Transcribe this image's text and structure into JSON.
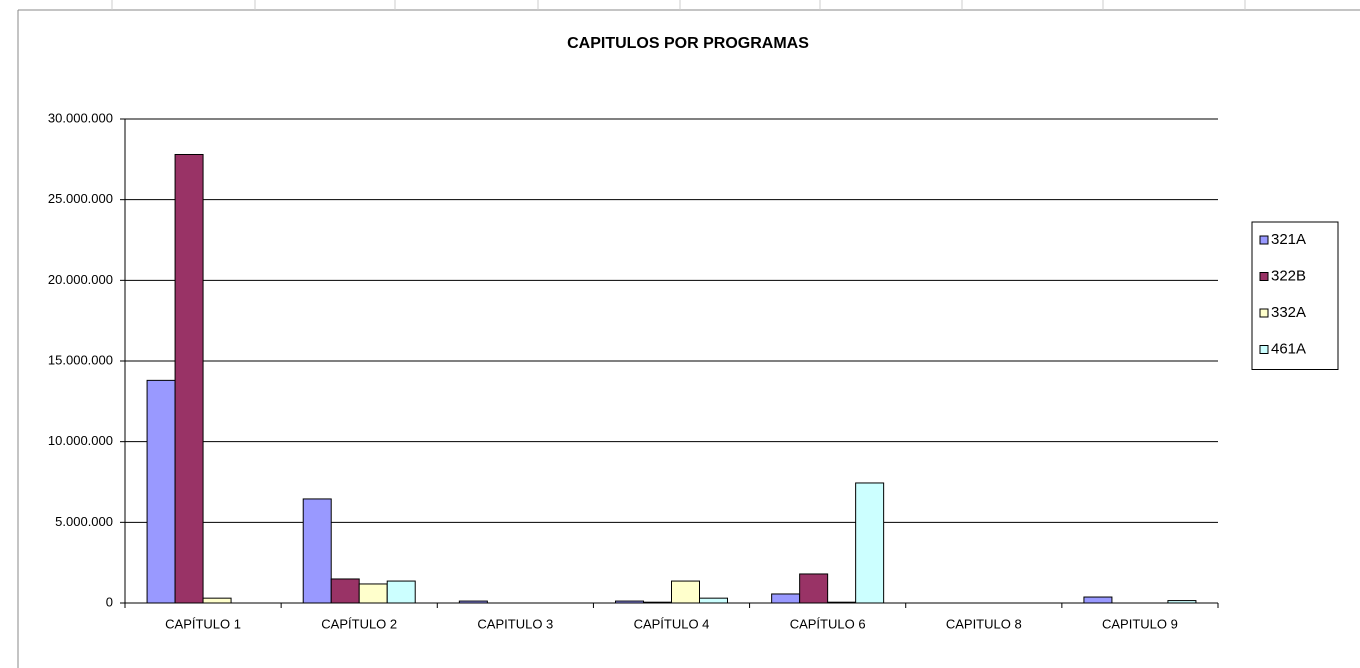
{
  "chart_data": {
    "type": "bar",
    "title": "CAPITULOS POR PROGRAMAS",
    "categories": [
      "CAPÍTULO 1",
      "CAPÍTULO 2",
      "CAPITULO 3",
      "CAPÍTULO 4",
      "CAPÍTULO 6",
      "CAPITULO 8",
      "CAPITULO 9"
    ],
    "series": [
      {
        "name": "321A",
        "color": "#9999ff",
        "values": [
          13800000,
          6450000,
          120000,
          120000,
          560000,
          0,
          370000
        ]
      },
      {
        "name": "322B",
        "color": "#993366",
        "values": [
          27800000,
          1490000,
          0,
          50000,
          1800000,
          0,
          0
        ]
      },
      {
        "name": "332A",
        "color": "#ffffcc",
        "values": [
          300000,
          1180000,
          0,
          1360000,
          50000,
          0,
          0
        ]
      },
      {
        "name": "461A",
        "color": "#ccffff",
        "values": [
          0,
          1360000,
          0,
          300000,
          7440000,
          0,
          150000
        ]
      }
    ],
    "ylim": [
      0,
      30000000
    ],
    "yticks": [
      0,
      {
        "value": 5000000,
        "label": "5.000.000"
      },
      {
        "value": 10000000,
        "label": "10.000.000"
      },
      {
        "value": 15000000,
        "label": "15.000.000"
      },
      {
        "value": 20000000,
        "label": "20.000.000"
      },
      {
        "value": 25000000,
        "label": "25.000.000"
      },
      {
        "value": 30000000,
        "label": "30.000.000"
      }
    ],
    "grid": true,
    "legend": "right"
  }
}
